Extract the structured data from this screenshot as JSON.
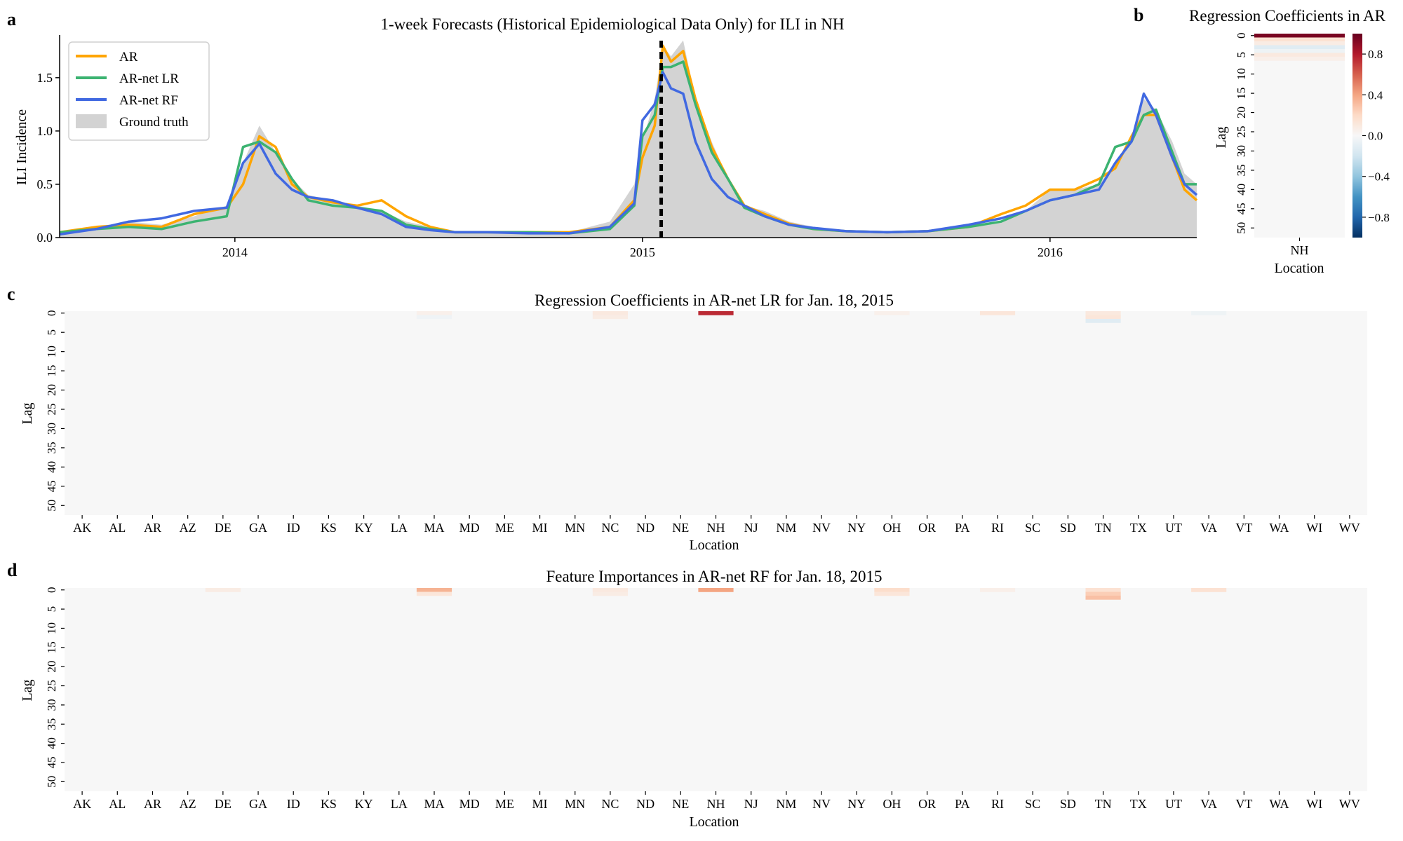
{
  "panel_letters": [
    "a",
    "b",
    "c",
    "d"
  ],
  "colors": {
    "ar": "#FFA500",
    "ar_net_lr": "#3CB371",
    "ar_net_rf": "#4169E1",
    "ground_truth": "#D3D3D3",
    "heat_background": "#F7F7F7"
  },
  "chart_data": [
    {
      "id": "a",
      "type": "line",
      "title": "1-week Forecasts (Historical Epidemiological Data Only) for ILI in NH",
      "xlabel": "",
      "ylabel": "ILI Incidence",
      "x_ticks": [
        "2014",
        "2015",
        "2016"
      ],
      "x_tick_values": [
        2014.0,
        2015.0,
        2016.0
      ],
      "xlim": [
        2013.57,
        2016.36
      ],
      "ylim": [
        0,
        1.9
      ],
      "y_ticks": [
        0.0,
        0.5,
        1.0,
        1.5
      ],
      "y_tick_labels": [
        "0.0",
        "0.5",
        "1.0",
        "1.5"
      ],
      "forecast_date": 2015.046,
      "legend": {
        "position": "top-left",
        "entries": [
          "AR",
          "AR-net LR",
          "AR-net RF",
          "Ground truth"
        ]
      },
      "x": [
        2013.57,
        2013.66,
        2013.74,
        2013.82,
        2013.9,
        2013.98,
        2014.02,
        2014.06,
        2014.1,
        2014.14,
        2014.18,
        2014.24,
        2014.3,
        2014.36,
        2014.42,
        2014.48,
        2014.54,
        2014.62,
        2014.72,
        2014.82,
        2014.92,
        2014.98,
        2015.0,
        2015.03,
        2015.05,
        2015.07,
        2015.1,
        2015.13,
        2015.17,
        2015.21,
        2015.25,
        2015.3,
        2015.36,
        2015.42,
        2015.5,
        2015.6,
        2015.7,
        2015.8,
        2015.88,
        2015.94,
        2016.0,
        2016.06,
        2016.12,
        2016.16,
        2016.2,
        2016.23,
        2016.26,
        2016.3,
        2016.33,
        2016.36
      ],
      "series": [
        {
          "name": "Ground truth",
          "kind": "area",
          "values": [
            0.05,
            0.1,
            0.15,
            0.12,
            0.2,
            0.3,
            0.7,
            1.05,
            0.8,
            0.55,
            0.4,
            0.35,
            0.3,
            0.25,
            0.15,
            0.1,
            0.05,
            0.05,
            0.05,
            0.05,
            0.15,
            0.5,
            0.9,
            1.3,
            1.8,
            1.7,
            1.85,
            1.3,
            0.9,
            0.55,
            0.3,
            0.25,
            0.15,
            0.1,
            0.06,
            0.05,
            0.06,
            0.1,
            0.15,
            0.25,
            0.45,
            0.45,
            0.5,
            0.7,
            0.9,
            1.3,
            1.2,
            0.9,
            0.6,
            0.5
          ]
        },
        {
          "name": "AR",
          "values": [
            0.05,
            0.1,
            0.12,
            0.1,
            0.22,
            0.28,
            0.5,
            0.95,
            0.85,
            0.5,
            0.38,
            0.33,
            0.3,
            0.35,
            0.2,
            0.1,
            0.05,
            0.05,
            0.05,
            0.05,
            0.1,
            0.35,
            0.75,
            1.05,
            1.8,
            1.65,
            1.75,
            1.3,
            0.85,
            0.55,
            0.3,
            0.22,
            0.13,
            0.08,
            0.06,
            0.05,
            0.06,
            0.1,
            0.22,
            0.3,
            0.45,
            0.45,
            0.55,
            0.65,
            0.95,
            1.15,
            1.15,
            0.75,
            0.45,
            0.35
          ]
        },
        {
          "name": "AR-net LR",
          "values": [
            0.05,
            0.08,
            0.1,
            0.08,
            0.15,
            0.2,
            0.85,
            0.9,
            0.8,
            0.55,
            0.35,
            0.3,
            0.28,
            0.25,
            0.12,
            0.08,
            0.05,
            0.05,
            0.05,
            0.04,
            0.08,
            0.3,
            0.95,
            1.15,
            1.6,
            1.6,
            1.65,
            1.25,
            0.8,
            0.55,
            0.28,
            0.2,
            0.12,
            0.08,
            0.06,
            0.05,
            0.06,
            0.1,
            0.15,
            0.25,
            0.35,
            0.4,
            0.5,
            0.85,
            0.9,
            1.15,
            1.2,
            0.8,
            0.5,
            0.5
          ]
        },
        {
          "name": "AR-net RF",
          "values": [
            0.03,
            0.08,
            0.15,
            0.18,
            0.25,
            0.28,
            0.7,
            0.88,
            0.6,
            0.45,
            0.38,
            0.35,
            0.28,
            0.22,
            0.1,
            0.07,
            0.05,
            0.05,
            0.04,
            0.04,
            0.1,
            0.32,
            1.1,
            1.25,
            1.55,
            1.4,
            1.35,
            0.9,
            0.55,
            0.38,
            0.3,
            0.2,
            0.12,
            0.09,
            0.06,
            0.05,
            0.06,
            0.12,
            0.18,
            0.25,
            0.35,
            0.4,
            0.45,
            0.7,
            0.9,
            1.35,
            1.15,
            0.75,
            0.5,
            0.4
          ]
        }
      ]
    },
    {
      "id": "b",
      "type": "heatmap",
      "title": "Regression Coefficients in AR",
      "xlabel": "Location",
      "ylabel": "Lag",
      "x_categories": [
        "NH"
      ],
      "y_ticks": [
        "0",
        "5",
        "10",
        "15",
        "20",
        "25",
        "30",
        "35",
        "40",
        "45",
        "50"
      ],
      "n_lags": 53,
      "cells": [
        {
          "loc": "NH",
          "lag": 0,
          "value": 0.95
        },
        {
          "loc": "NH",
          "lag": 1,
          "value": 0.15
        },
        {
          "loc": "NH",
          "lag": 2,
          "value": 0.08
        },
        {
          "loc": "NH",
          "lag": 3,
          "value": -0.12
        },
        {
          "loc": "NH",
          "lag": 4,
          "value": -0.05
        },
        {
          "loc": "NH",
          "lag": 5,
          "value": 0.1
        },
        {
          "loc": "NH",
          "lag": 6,
          "value": 0.06
        }
      ],
      "colorbar": {
        "ticks": [
          0.8,
          0.4,
          0.0,
          -0.4,
          -0.8
        ],
        "labels": [
          "0.8",
          "0.4",
          "0.0",
          "−0.4",
          "−0.8"
        ],
        "range": [
          -1,
          1
        ]
      }
    },
    {
      "id": "c",
      "type": "heatmap",
      "title": "Regression Coefficients in AR-net LR for Jan. 18, 2015",
      "xlabel": "Location",
      "ylabel": "Lag",
      "x_categories": [
        "AK",
        "AL",
        "AR",
        "AZ",
        "DE",
        "GA",
        "ID",
        "KS",
        "KY",
        "LA",
        "MA",
        "MD",
        "ME",
        "MI",
        "MN",
        "NC",
        "ND",
        "NE",
        "NH",
        "NJ",
        "NM",
        "NV",
        "NY",
        "OH",
        "OR",
        "PA",
        "RI",
        "SC",
        "SD",
        "TN",
        "TX",
        "UT",
        "VA",
        "VT",
        "WA",
        "WI",
        "WV"
      ],
      "y_ticks": [
        "0",
        "5",
        "10",
        "15",
        "20",
        "25",
        "30",
        "35",
        "40",
        "45",
        "50"
      ],
      "n_lags": 53,
      "cells": [
        {
          "loc": "NH",
          "lag": 0,
          "value": 0.75
        },
        {
          "loc": "NC",
          "lag": 0,
          "value": 0.1
        },
        {
          "loc": "NC",
          "lag": 1,
          "value": 0.08
        },
        {
          "loc": "RI",
          "lag": 0,
          "value": 0.12
        },
        {
          "loc": "TN",
          "lag": 0,
          "value": 0.1
        },
        {
          "loc": "TN",
          "lag": 1,
          "value": 0.12
        },
        {
          "loc": "TN",
          "lag": 2,
          "value": -0.12
        },
        {
          "loc": "MA",
          "lag": 0,
          "value": 0.05
        },
        {
          "loc": "MA",
          "lag": 1,
          "value": -0.04
        },
        {
          "loc": "OH",
          "lag": 0,
          "value": 0.05
        },
        {
          "loc": "VA",
          "lag": 0,
          "value": -0.05
        }
      ]
    },
    {
      "id": "d",
      "type": "heatmap",
      "title": "Feature Importances in AR-net RF for Jan. 18, 2015",
      "xlabel": "Location",
      "ylabel": "Lag",
      "x_categories": [
        "AK",
        "AL",
        "AR",
        "AZ",
        "DE",
        "GA",
        "ID",
        "KS",
        "KY",
        "LA",
        "MA",
        "MD",
        "ME",
        "MI",
        "MN",
        "NC",
        "ND",
        "NE",
        "NH",
        "NJ",
        "NM",
        "NV",
        "NY",
        "OH",
        "OR",
        "PA",
        "RI",
        "SC",
        "SD",
        "TN",
        "TX",
        "UT",
        "VA",
        "VT",
        "WA",
        "WI",
        "WV"
      ],
      "y_ticks": [
        "0",
        "5",
        "10",
        "15",
        "20",
        "25",
        "30",
        "35",
        "40",
        "45",
        "50"
      ],
      "n_lags": 53,
      "cells": [
        {
          "loc": "DE",
          "lag": 0,
          "value": 0.08
        },
        {
          "loc": "MA",
          "lag": 0,
          "value": 0.35
        },
        {
          "loc": "MA",
          "lag": 1,
          "value": 0.12
        },
        {
          "loc": "NC",
          "lag": 0,
          "value": 0.1
        },
        {
          "loc": "NC",
          "lag": 1,
          "value": 0.08
        },
        {
          "loc": "NH",
          "lag": 0,
          "value": 0.4
        },
        {
          "loc": "OH",
          "lag": 0,
          "value": 0.18
        },
        {
          "loc": "OH",
          "lag": 1,
          "value": 0.12
        },
        {
          "loc": "RI",
          "lag": 0,
          "value": 0.06
        },
        {
          "loc": "TN",
          "lag": 0,
          "value": 0.15
        },
        {
          "loc": "TN",
          "lag": 1,
          "value": 0.25
        },
        {
          "loc": "TN",
          "lag": 2,
          "value": 0.3
        },
        {
          "loc": "VA",
          "lag": 0,
          "value": 0.15
        }
      ]
    }
  ]
}
